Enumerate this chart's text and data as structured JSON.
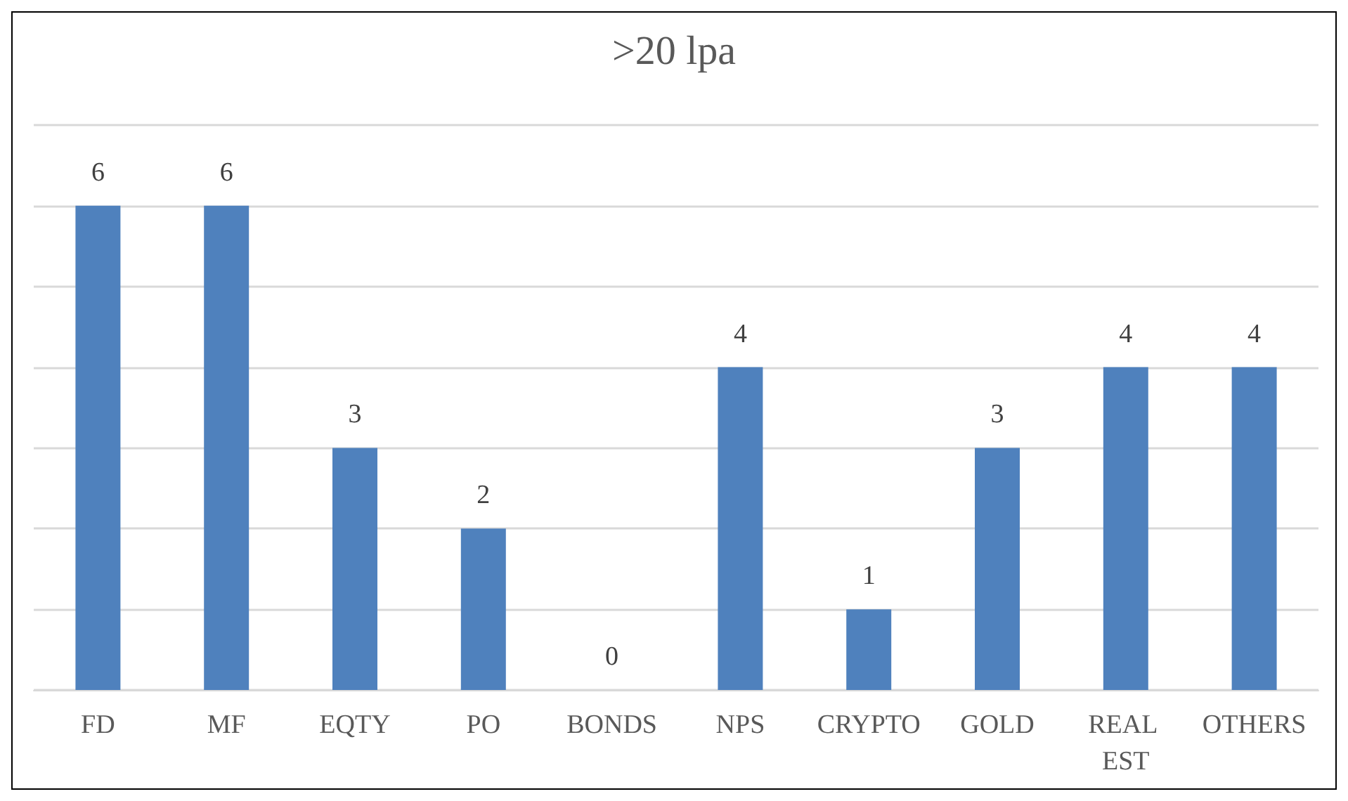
{
  "chart_data": {
    "type": "bar",
    "title": ">20 lpa",
    "categories": [
      "FD",
      "MF",
      "EQTY",
      "PO",
      "BONDS",
      "NPS",
      "CRYPTO",
      "GOLD",
      "REAL EST",
      "OTHERS"
    ],
    "values": [
      6,
      6,
      3,
      2,
      0,
      4,
      1,
      3,
      4,
      4
    ],
    "color": "#4f81bd",
    "ylim": [
      0,
      7
    ],
    "yticks": [
      {
        "value": 0,
        "label": null
      },
      {
        "value": 1,
        "label": null
      },
      {
        "value": 2,
        "label": null
      },
      {
        "value": 3,
        "label": null
      },
      {
        "value": 4,
        "label": null
      },
      {
        "value": 5,
        "label": null
      },
      {
        "value": 6,
        "label": null
      },
      {
        "value": 7,
        "label": null
      }
    ],
    "grid": "y",
    "tick_labels": "x",
    "data_labels": true
  }
}
